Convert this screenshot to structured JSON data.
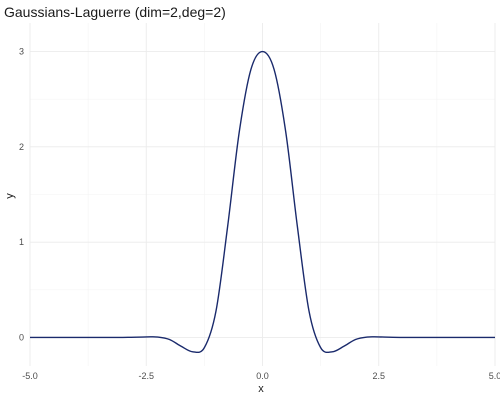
{
  "chart_data": {
    "type": "line",
    "title": "Gaussians-Laguerre (dim=2,deg=2)",
    "xlabel": "x",
    "ylabel": "y",
    "xlim": [
      -5.0,
      5.0
    ],
    "ylim": [
      -0.3,
      3.3
    ],
    "x_ticks": [
      -5.0,
      -2.5,
      0.0,
      2.5,
      5.0
    ],
    "x_tick_labels": [
      "-5.0",
      "-2.5",
      "0.0",
      "2.5",
      "5.0"
    ],
    "y_ticks": [
      0,
      1,
      2,
      3
    ],
    "y_tick_labels": [
      "0",
      "1",
      "2",
      "3"
    ],
    "grid": true,
    "legend": "none",
    "series": [
      {
        "color": "#1a2a6c",
        "x": [
          -5.0,
          -4.5,
          -4.0,
          -3.5,
          -3.0,
          -2.5,
          -2.25,
          -2.0,
          -1.75,
          -1.5,
          -1.25,
          -1.0,
          -0.75,
          -0.5,
          -0.25,
          0.0,
          0.25,
          0.5,
          0.75,
          1.0,
          1.25,
          1.5,
          1.75,
          2.0,
          2.25,
          2.5,
          3.0,
          3.5,
          4.0,
          4.5,
          5.0
        ],
        "y": [
          0.0,
          0.0,
          0.0,
          0.0,
          0.0,
          0.005,
          0.004,
          -0.022,
          -0.093,
          -0.151,
          -0.107,
          0.277,
          1.164,
          2.156,
          2.811,
          3.0,
          2.811,
          2.156,
          1.164,
          0.277,
          -0.107,
          -0.151,
          -0.093,
          -0.022,
          0.004,
          0.005,
          0.0,
          0.0,
          0.0,
          0.0,
          0.0
        ]
      }
    ]
  }
}
